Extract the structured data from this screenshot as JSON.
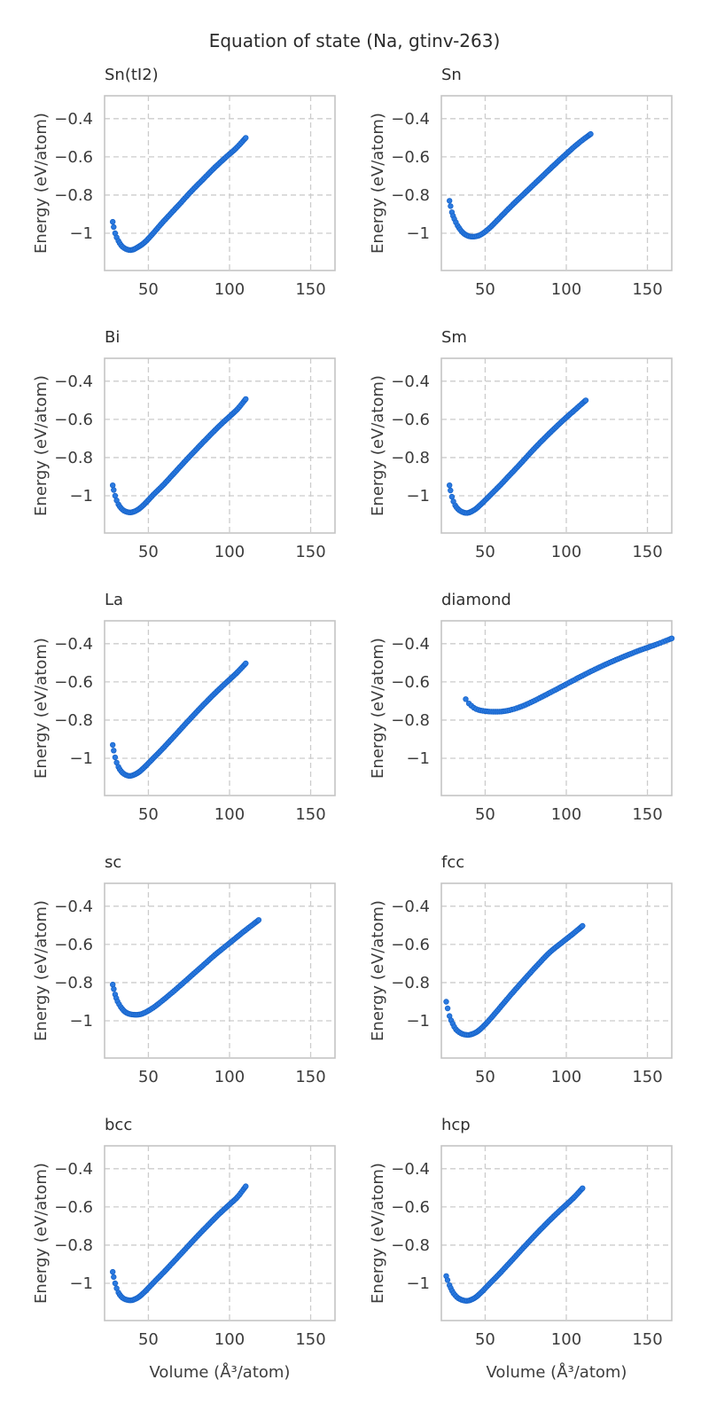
{
  "figure": {
    "title": "Equation of state (Na, gtinv-263)"
  },
  "chart_data": {
    "type": "scatter",
    "layout": "grid-5x2",
    "title": "Equation of state (Na, gtinv-263)",
    "xlabel": "Volume (Å³/atom)",
    "ylabel": "Energy (eV/atom)",
    "xlim": [
      23,
      165
    ],
    "ylim": [
      -1.195,
      -0.28
    ],
    "xticks": [
      50,
      100,
      150
    ],
    "yticks": [
      -0.4,
      -0.6,
      -0.8,
      -1.0
    ],
    "grid": "dashed",
    "legend": "none",
    "marker_color": "#2b7ae0",
    "marker_edge_color": "#1663c9",
    "subplots": [
      {
        "title": "Sn(tI2)",
        "points": [
          [
            28,
            -0.94
          ],
          [
            29.5,
            -1.0
          ],
          [
            31.5,
            -1.04
          ],
          [
            34,
            -1.07
          ],
          [
            37,
            -1.085
          ],
          [
            40,
            -1.087
          ],
          [
            44,
            -1.07
          ],
          [
            48,
            -1.045
          ],
          [
            53,
            -1.0
          ],
          [
            58,
            -0.95
          ],
          [
            64,
            -0.895
          ],
          [
            70,
            -0.84
          ],
          [
            77,
            -0.775
          ],
          [
            84,
            -0.715
          ],
          [
            91,
            -0.655
          ],
          [
            98,
            -0.6
          ],
          [
            104,
            -0.555
          ],
          [
            110,
            -0.5
          ]
        ]
      },
      {
        "title": "Sn",
        "points": [
          [
            28,
            -0.83
          ],
          [
            29.5,
            -0.89
          ],
          [
            31,
            -0.925
          ],
          [
            33,
            -0.96
          ],
          [
            35.5,
            -0.99
          ],
          [
            38,
            -1.008
          ],
          [
            41,
            -1.017
          ],
          [
            45,
            -1.015
          ],
          [
            49,
            -0.998
          ],
          [
            54,
            -0.962
          ],
          [
            60,
            -0.91
          ],
          [
            67,
            -0.85
          ],
          [
            75,
            -0.785
          ],
          [
            83,
            -0.72
          ],
          [
            91,
            -0.655
          ],
          [
            99,
            -0.592
          ],
          [
            107,
            -0.532
          ],
          [
            115,
            -0.48
          ]
        ]
      },
      {
        "title": "Bi",
        "points": [
          [
            28,
            -0.945
          ],
          [
            29.5,
            -1.0
          ],
          [
            31.5,
            -1.045
          ],
          [
            34,
            -1.072
          ],
          [
            37,
            -1.085
          ],
          [
            40,
            -1.086
          ],
          [
            44,
            -1.07
          ],
          [
            48,
            -1.04
          ],
          [
            53,
            -0.995
          ],
          [
            59,
            -0.945
          ],
          [
            65,
            -0.89
          ],
          [
            72,
            -0.825
          ],
          [
            79,
            -0.762
          ],
          [
            86,
            -0.7
          ],
          [
            93,
            -0.64
          ],
          [
            100,
            -0.585
          ],
          [
            105,
            -0.545
          ],
          [
            110,
            -0.493
          ]
        ]
      },
      {
        "title": "Sm",
        "points": [
          [
            28,
            -0.945
          ],
          [
            29.5,
            -1.005
          ],
          [
            31.5,
            -1.05
          ],
          [
            34,
            -1.075
          ],
          [
            37,
            -1.088
          ],
          [
            40,
            -1.088
          ],
          [
            44,
            -1.07
          ],
          [
            48,
            -1.04
          ],
          [
            53,
            -0.998
          ],
          [
            59,
            -0.947
          ],
          [
            65,
            -0.893
          ],
          [
            72,
            -0.83
          ],
          [
            79,
            -0.765
          ],
          [
            86,
            -0.703
          ],
          [
            93,
            -0.645
          ],
          [
            100,
            -0.59
          ],
          [
            106,
            -0.545
          ],
          [
            112,
            -0.5
          ]
        ]
      },
      {
        "title": "La",
        "points": [
          [
            28,
            -0.93
          ],
          [
            29.5,
            -0.995
          ],
          [
            31.5,
            -1.045
          ],
          [
            34,
            -1.075
          ],
          [
            37,
            -1.09
          ],
          [
            40,
            -1.09
          ],
          [
            44,
            -1.073
          ],
          [
            48,
            -1.043
          ],
          [
            53,
            -1.0
          ],
          [
            59,
            -0.948
          ],
          [
            65,
            -0.893
          ],
          [
            72,
            -0.828
          ],
          [
            79,
            -0.764
          ],
          [
            86,
            -0.702
          ],
          [
            93,
            -0.643
          ],
          [
            100,
            -0.588
          ],
          [
            105,
            -0.548
          ],
          [
            110,
            -0.503
          ]
        ]
      },
      {
        "title": "diamond",
        "points": [
          [
            38,
            -0.69
          ],
          [
            40,
            -0.713
          ],
          [
            43,
            -0.735
          ],
          [
            46,
            -0.747
          ],
          [
            50,
            -0.753
          ],
          [
            55,
            -0.756
          ],
          [
            60,
            -0.755
          ],
          [
            65,
            -0.748
          ],
          [
            71,
            -0.733
          ],
          [
            78,
            -0.708
          ],
          [
            85,
            -0.678
          ],
          [
            93,
            -0.643
          ],
          [
            101,
            -0.607
          ],
          [
            110,
            -0.567
          ],
          [
            119,
            -0.529
          ],
          [
            128,
            -0.494
          ],
          [
            137,
            -0.462
          ],
          [
            146,
            -0.432
          ],
          [
            155,
            -0.405
          ],
          [
            165,
            -0.372
          ]
        ]
      },
      {
        "title": "sc",
        "points": [
          [
            28,
            -0.81
          ],
          [
            29.5,
            -0.862
          ],
          [
            31,
            -0.898
          ],
          [
            33,
            -0.928
          ],
          [
            35.5,
            -0.952
          ],
          [
            38,
            -0.963
          ],
          [
            41,
            -0.968
          ],
          [
            45,
            -0.966
          ],
          [
            49,
            -0.952
          ],
          [
            54,
            -0.925
          ],
          [
            60,
            -0.885
          ],
          [
            67,
            -0.835
          ],
          [
            75,
            -0.775
          ],
          [
            83,
            -0.715
          ],
          [
            91,
            -0.655
          ],
          [
            99,
            -0.6
          ],
          [
            108,
            -0.538
          ],
          [
            118,
            -0.472
          ]
        ]
      },
      {
        "title": "fcc",
        "points": [
          [
            26,
            -0.9
          ],
          [
            28,
            -0.975
          ],
          [
            30,
            -1.015
          ],
          [
            32,
            -1.045
          ],
          [
            35,
            -1.065
          ],
          [
            38,
            -1.073
          ],
          [
            41,
            -1.072
          ],
          [
            45,
            -1.057
          ],
          [
            49,
            -1.028
          ],
          [
            54,
            -0.982
          ],
          [
            60,
            -0.922
          ],
          [
            67,
            -0.852
          ],
          [
            74,
            -0.785
          ],
          [
            82,
            -0.71
          ],
          [
            90,
            -0.64
          ],
          [
            97,
            -0.592
          ],
          [
            104,
            -0.545
          ],
          [
            110,
            -0.503
          ]
        ]
      },
      {
        "title": "bcc",
        "points": [
          [
            28,
            -0.94
          ],
          [
            29.5,
            -1.0
          ],
          [
            31.5,
            -1.048
          ],
          [
            34,
            -1.075
          ],
          [
            37,
            -1.087
          ],
          [
            40,
            -1.088
          ],
          [
            44,
            -1.072
          ],
          [
            48,
            -1.042
          ],
          [
            53,
            -0.998
          ],
          [
            59,
            -0.946
          ],
          [
            65,
            -0.892
          ],
          [
            72,
            -0.828
          ],
          [
            79,
            -0.764
          ],
          [
            86,
            -0.702
          ],
          [
            93,
            -0.642
          ],
          [
            100,
            -0.587
          ],
          [
            105,
            -0.547
          ],
          [
            110,
            -0.492
          ]
        ]
      },
      {
        "title": "hcp",
        "points": [
          [
            26,
            -0.962
          ],
          [
            28,
            -1.01
          ],
          [
            30.5,
            -1.052
          ],
          [
            33.5,
            -1.078
          ],
          [
            37,
            -1.09
          ],
          [
            40,
            -1.09
          ],
          [
            44,
            -1.074
          ],
          [
            48,
            -1.044
          ],
          [
            53,
            -1.0
          ],
          [
            59,
            -0.948
          ],
          [
            65,
            -0.893
          ],
          [
            72,
            -0.828
          ],
          [
            79,
            -0.764
          ],
          [
            86,
            -0.702
          ],
          [
            93,
            -0.643
          ],
          [
            100,
            -0.588
          ],
          [
            105,
            -0.548
          ],
          [
            110,
            -0.502
          ]
        ]
      }
    ]
  },
  "style": {
    "grid_color": "#cccccc",
    "spine_color": "#c4c4c4",
    "text_color": "#3c3c3c",
    "points_per_curve": 95
  }
}
